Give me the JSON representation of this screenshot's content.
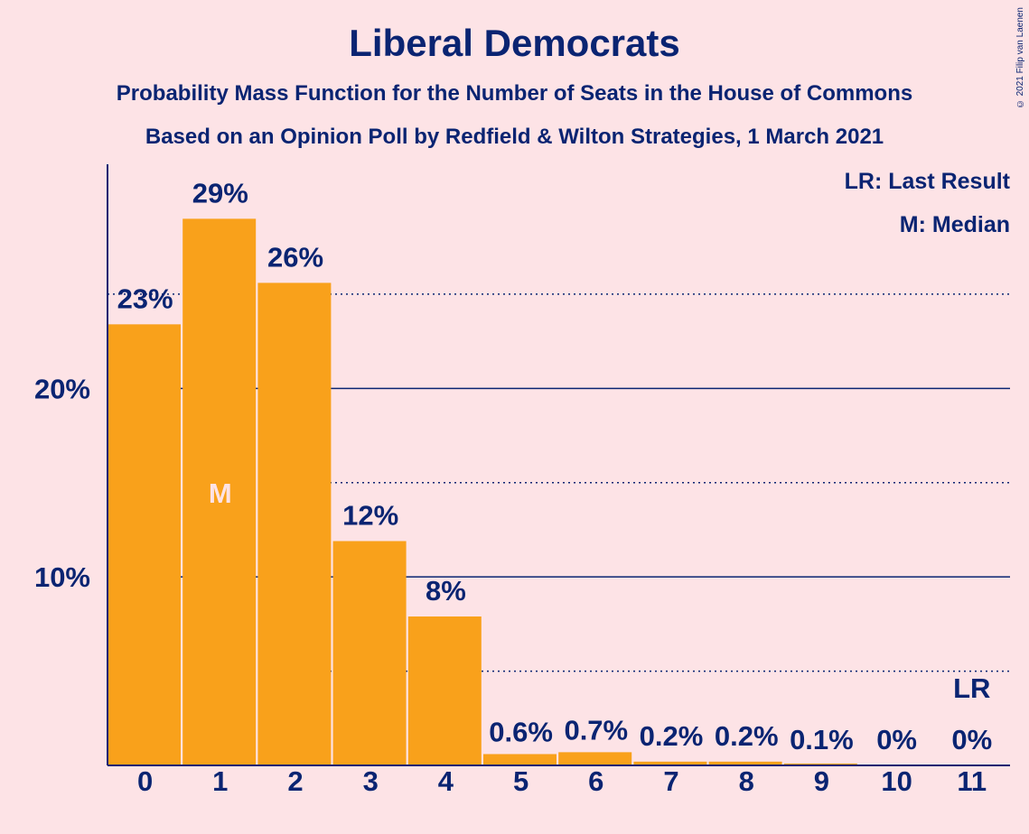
{
  "chart_data": {
    "type": "bar",
    "title": "Liberal Democrats",
    "subtitle": "Probability Mass Function for the Number of Seats in the House of Commons",
    "subtitle2": "Based on an Opinion Poll by Redfield & Wilton Strategies, 1 March 2021",
    "categories": [
      "0",
      "1",
      "2",
      "3",
      "4",
      "5",
      "6",
      "7",
      "8",
      "9",
      "10",
      "11"
    ],
    "values": [
      23.4,
      29.0,
      25.6,
      11.9,
      7.9,
      0.6,
      0.7,
      0.2,
      0.2,
      0.1,
      0.0,
      0.0
    ],
    "data_labels": [
      "23%",
      "29%",
      "26%",
      "12%",
      "8%",
      "0.6%",
      "0.7%",
      "0.2%",
      "0.2%",
      "0.1%",
      "0%",
      "0%"
    ],
    "ylim": [
      0,
      31.7
    ],
    "yticks": [
      10,
      20
    ],
    "ytick_labels": [
      "10%",
      "20%"
    ],
    "solid_gridlines": [
      10,
      20
    ],
    "dotted_gridlines": [
      5,
      15,
      25
    ],
    "median_index": 1,
    "median_marker": "M",
    "last_result_index": 11,
    "last_result_marker": "LR",
    "legend": [
      "LR: Last Result",
      "M: Median"
    ],
    "legend_position": "top-right",
    "bar_color": "#F9A11B",
    "text_color": "#0A2472",
    "background_color": "#FDE3E6"
  },
  "copyright": "© 2021 Filip van Laenen"
}
